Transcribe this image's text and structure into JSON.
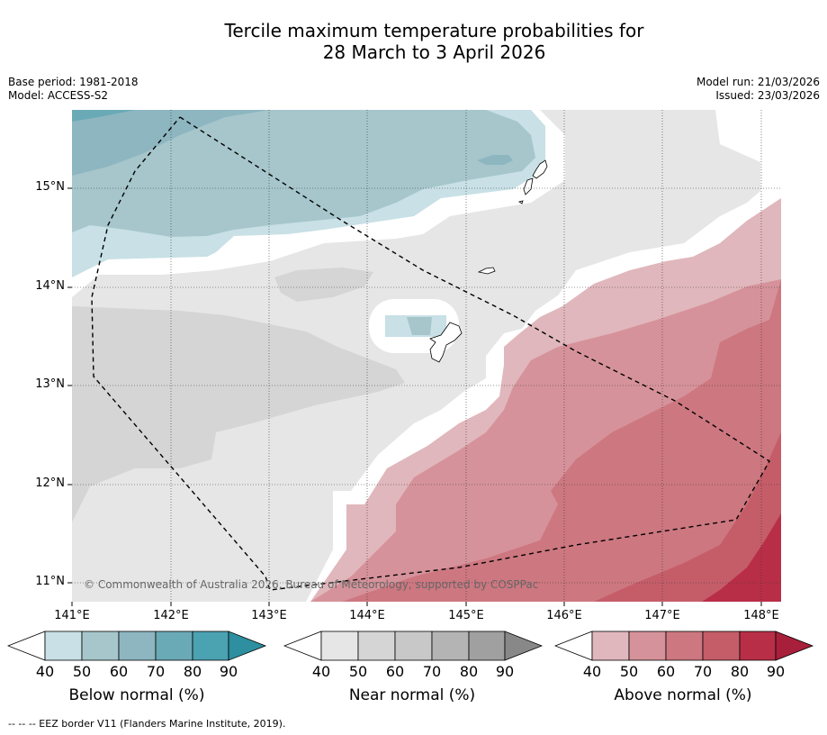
{
  "title_line1": "Tercile maximum temperature probabilities for",
  "title_line2": "28 March to 3 April 2026",
  "meta_left": {
    "base_period": "Base period: 1981-2018",
    "model": "Model: ACCESS-S2"
  },
  "meta_right": {
    "model_run": "Model run: 21/03/2026",
    "issued": "Issued: 23/03/2026"
  },
  "lat_labels": [
    "15°N",
    "14°N",
    "13°N",
    "12°N",
    "11°N"
  ],
  "lon_labels": [
    "141°E",
    "142°E",
    "143°E",
    "144°E",
    "145°E",
    "146°E",
    "147°E",
    "148°E"
  ],
  "copyright": "© Commonwealth of Australia 2026, Bureau of Meteorology, supported by COSPPac",
  "colorbars": [
    {
      "label": "Below normal (%)",
      "ticks": [
        "40",
        "50",
        "60",
        "70",
        "80",
        "90"
      ],
      "colors": [
        "#c8e0e6",
        "#a6c6cb",
        "#8db6c1",
        "#6aaab6",
        "#4ba2b1",
        "#2d8f9f"
      ]
    },
    {
      "label": "Near normal (%)",
      "ticks": [
        "40",
        "50",
        "60",
        "70",
        "80",
        "90"
      ],
      "colors": [
        "#e6e6e6",
        "#d5d5d5",
        "#c8c8c8",
        "#b4b4b4",
        "#a0a0a0",
        "#888888"
      ]
    },
    {
      "label": "Above normal (%)",
      "ticks": [
        "40",
        "50",
        "60",
        "70",
        "80",
        "90"
      ],
      "colors": [
        "#e0b7bc",
        "#d6929a",
        "#cd7780",
        "#c55d69",
        "#b92e47",
        "#a81f3b"
      ]
    }
  ],
  "footnote": "--  --  -- EEZ border V11 (Flanders Marine Institute, 2019)."
}
